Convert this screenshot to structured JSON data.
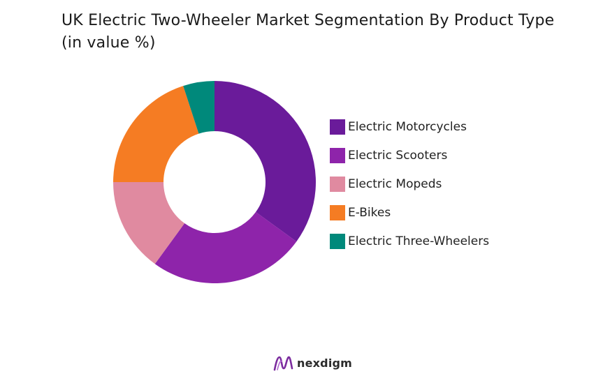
{
  "title": "UK Electric Two-Wheeler Market Segmentation By Product Type (in value %)",
  "brand": {
    "name": "nexdigm",
    "icon": "nexdigm-logo-icon",
    "color": "#7B2C9E"
  },
  "chart_data": {
    "type": "pie",
    "variant": "donut",
    "title": "UK Electric Two-Wheeler Market Segmentation By Product Type (in value %)",
    "legend_position": "right",
    "start_angle_deg": 0,
    "direction": "clockwise",
    "categories": [
      "Electric Motorcycles",
      "Electric Scooters",
      "Electric Mopeds",
      "E-Bikes",
      "Electric Three-Wheelers"
    ],
    "values": [
      35,
      25,
      15,
      20,
      5
    ],
    "colors": [
      "#6A1B9A",
      "#8E24AA",
      "#E08AA0",
      "#F57C23",
      "#00897B"
    ]
  }
}
